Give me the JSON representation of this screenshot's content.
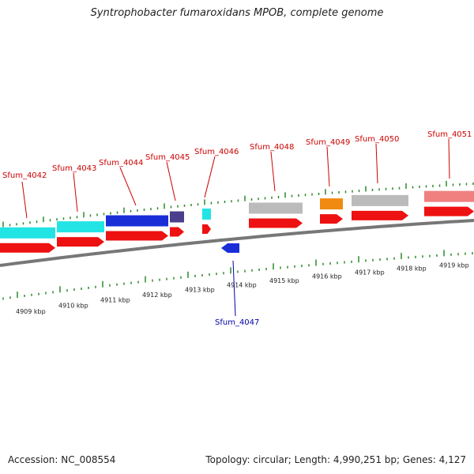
{
  "title": "Syntrophobacter fumaroxidans MPOB, complete genome",
  "footer": {
    "accession": "Accession: NC_008554",
    "topology": "Topology: circular; Length: 4,990,251 bp; Genes: 4,127"
  },
  "colors": {
    "backbone": "#777777",
    "tick": "#2a8a2a",
    "label_forward": "#cc0000",
    "label_reverse": "#0000aa",
    "cds": "#ee1111"
  },
  "scale": {
    "unit": "kbp",
    "labels": [
      "4909 kbp",
      "4910 kbp",
      "4911 kbp",
      "4912 kbp",
      "4913 kbp",
      "4914 kbp",
      "4915 kbp",
      "4916 kbp",
      "4917 kbp",
      "4918 kbp",
      "4919 kbp"
    ]
  },
  "genes": [
    {
      "name": "Sfum_4042",
      "strand": "+",
      "color": "#22e4e4"
    },
    {
      "name": "Sfum_4043",
      "strand": "+",
      "color": "#22e4e4"
    },
    {
      "name": "Sfum_4044",
      "strand": "+",
      "color": "#1a2ed8"
    },
    {
      "name": "Sfum_4045",
      "strand": "+",
      "color": "#4a3f8c"
    },
    {
      "name": "Sfum_4046",
      "strand": "+",
      "color": "#22e4e4"
    },
    {
      "name": "Sfum_4047",
      "strand": "-",
      "color": "#1a2ed8"
    },
    {
      "name": "Sfum_4048",
      "strand": "+",
      "color": "#bbbbbb"
    },
    {
      "name": "Sfum_4049",
      "strand": "+",
      "color": "#f08a10"
    },
    {
      "name": "Sfum_4050",
      "strand": "+",
      "color": "#bbbbbb"
    },
    {
      "name": "Sfum_4051",
      "strand": "+",
      "color": "#f08080"
    }
  ]
}
